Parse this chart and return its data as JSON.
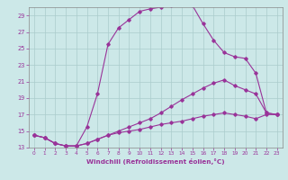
{
  "xlabel": "Windchill (Refroidissement éolien,°C)",
  "ylabel": "",
  "bg_color": "#cce8e8",
  "line_color": "#993399",
  "grid_color": "#aacccc",
  "xlim": [
    -0.5,
    23.5
  ],
  "ylim": [
    13,
    30
  ],
  "yticks": [
    13,
    15,
    17,
    19,
    21,
    23,
    25,
    27,
    29
  ],
  "xticks": [
    0,
    1,
    2,
    3,
    4,
    5,
    6,
    7,
    8,
    9,
    10,
    11,
    12,
    13,
    14,
    15,
    16,
    17,
    18,
    19,
    20,
    21,
    22,
    23
  ],
  "line1_x": [
    0,
    1,
    2,
    3,
    4,
    5,
    6,
    7,
    8,
    9,
    10,
    11,
    12,
    13,
    14,
    15,
    16,
    17,
    18,
    19,
    20,
    21,
    22,
    23
  ],
  "line1_y": [
    14.5,
    14.2,
    13.5,
    13.2,
    13.2,
    15.5,
    19.5,
    25.5,
    27.5,
    28.5,
    29.5,
    29.8,
    30.0,
    30.2,
    30.3,
    30.2,
    28.0,
    26.0,
    24.5,
    24.0,
    23.8,
    22.0,
    17.2,
    17.0
  ],
  "line2_x": [
    0,
    1,
    2,
    3,
    4,
    5,
    6,
    7,
    8,
    9,
    10,
    11,
    12,
    13,
    14,
    15,
    16,
    17,
    18,
    19,
    20,
    21,
    22,
    23
  ],
  "line2_y": [
    14.5,
    14.2,
    13.5,
    13.2,
    13.2,
    13.5,
    14.0,
    14.5,
    15.0,
    15.5,
    16.0,
    16.5,
    17.2,
    18.0,
    18.8,
    19.5,
    20.2,
    20.8,
    21.2,
    20.5,
    20.0,
    19.5,
    17.2,
    17.0
  ],
  "line3_x": [
    0,
    1,
    2,
    3,
    4,
    5,
    6,
    7,
    8,
    9,
    10,
    11,
    12,
    13,
    14,
    15,
    16,
    17,
    18,
    19,
    20,
    21,
    22,
    23
  ],
  "line3_y": [
    14.5,
    14.2,
    13.5,
    13.2,
    13.2,
    13.5,
    14.0,
    14.5,
    14.8,
    15.0,
    15.2,
    15.5,
    15.8,
    16.0,
    16.2,
    16.5,
    16.8,
    17.0,
    17.2,
    17.0,
    16.8,
    16.5,
    17.0,
    17.0
  ]
}
